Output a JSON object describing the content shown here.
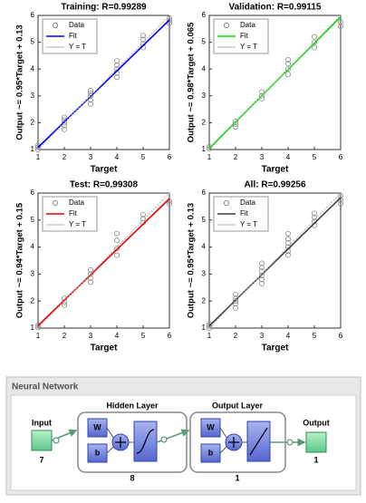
{
  "chart_data": [
    {
      "type": "scatter",
      "title": "Training: R=0.99289",
      "xlabel": "Target",
      "ylabel": "Output ~= 0.95*Target + 0.13",
      "xlim": [
        1,
        6
      ],
      "ylim": [
        1,
        6
      ],
      "xticks": [
        1,
        2,
        3,
        4,
        5,
        6
      ],
      "yticks": [
        1,
        2,
        3,
        4,
        5,
        6
      ],
      "legend": "upper left",
      "series": [
        {
          "name": "Data",
          "color": "#8c8c8c",
          "x": [
            1,
            1,
            1,
            2,
            2,
            2,
            2,
            2,
            3,
            3,
            3,
            3,
            3,
            4,
            4,
            4,
            4,
            4,
            5,
            5,
            5,
            5,
            6,
            6,
            6
          ],
          "values": [
            1.0,
            1.08,
            1.15,
            1.75,
            1.9,
            2.0,
            2.1,
            2.2,
            2.7,
            2.85,
            3.0,
            3.1,
            3.2,
            3.7,
            3.85,
            4.0,
            4.15,
            4.3,
            4.8,
            4.95,
            5.1,
            5.25,
            5.7,
            5.8,
            5.9
          ]
        },
        {
          "name": "Fit",
          "color": "#0000ff",
          "slope": 0.95,
          "intercept": 0.13
        },
        {
          "name": "Y = T",
          "color": "#b0b0b0"
        }
      ]
    },
    {
      "type": "scatter",
      "title": "Validation: R=0.99115",
      "xlabel": "Target",
      "ylabel": "Output ~= 0.98*Target + 0.065",
      "xlim": [
        1,
        6
      ],
      "ylim": [
        1,
        6
      ],
      "xticks": [
        1,
        2,
        3,
        4,
        5,
        6
      ],
      "yticks": [
        1,
        2,
        3,
        4,
        5,
        6
      ],
      "legend": "upper left",
      "series": [
        {
          "name": "Data",
          "color": "#8c8c8c",
          "x": [
            1,
            1,
            2,
            2,
            2,
            3,
            3,
            3,
            4,
            4,
            4,
            4,
            5,
            5,
            5,
            6,
            6
          ],
          "values": [
            1.02,
            1.1,
            1.85,
            1.95,
            2.05,
            2.9,
            3.0,
            3.15,
            3.8,
            4.0,
            4.2,
            4.35,
            4.8,
            5.0,
            5.2,
            5.6,
            5.75
          ]
        },
        {
          "name": "Fit",
          "color": "#00e600",
          "slope": 0.98,
          "intercept": 0.065
        },
        {
          "name": "Y = T",
          "color": "#b0b0b0"
        }
      ]
    },
    {
      "type": "scatter",
      "title": "Test: R=0.99308",
      "xlabel": "Target",
      "ylabel": "Output ~= 0.94*Target + 0.15",
      "xlim": [
        1,
        6
      ],
      "ylim": [
        1,
        6
      ],
      "xticks": [
        1,
        2,
        3,
        4,
        5,
        6
      ],
      "yticks": [
        1,
        2,
        3,
        4,
        5,
        6
      ],
      "legend": "upper left",
      "series": [
        {
          "name": "Data",
          "color": "#8c8c8c",
          "x": [
            1,
            1,
            2,
            2,
            2,
            3,
            3,
            3,
            3,
            4,
            4,
            4,
            4,
            5,
            5,
            5,
            6,
            6
          ],
          "values": [
            1.02,
            1.1,
            1.85,
            1.95,
            2.1,
            2.7,
            2.85,
            3.0,
            3.15,
            3.7,
            3.95,
            4.25,
            4.5,
            4.9,
            5.05,
            5.2,
            5.6,
            5.7
          ]
        },
        {
          "name": "Fit",
          "color": "#e60000",
          "slope": 0.94,
          "intercept": 0.15
        },
        {
          "name": "Y = T",
          "color": "#b0b0b0"
        }
      ]
    },
    {
      "type": "scatter",
      "title": "All: R=0.99256",
      "xlabel": "Target",
      "ylabel": "Output ~= 0.95*Target + 0.13",
      "xlim": [
        1,
        6
      ],
      "ylim": [
        1,
        6
      ],
      "xticks": [
        1,
        2,
        3,
        4,
        5,
        6
      ],
      "yticks": [
        1,
        2,
        3,
        4,
        5,
        6
      ],
      "legend": "upper left",
      "series": [
        {
          "name": "Data",
          "color": "#8c8c8c",
          "x": [
            1,
            1,
            1,
            2,
            2,
            2,
            2,
            2,
            3,
            3,
            3,
            3,
            3,
            3,
            4,
            4,
            4,
            4,
            4,
            4,
            5,
            5,
            5,
            5,
            6,
            6,
            6
          ],
          "values": [
            1.0,
            1.08,
            1.15,
            1.75,
            1.9,
            2.0,
            2.1,
            2.25,
            2.65,
            2.8,
            2.95,
            3.1,
            3.25,
            3.4,
            3.7,
            3.85,
            4.0,
            4.15,
            4.3,
            4.5,
            4.8,
            4.95,
            5.1,
            5.25,
            5.6,
            5.75,
            5.9
          ]
        },
        {
          "name": "Fit",
          "color": "#404040",
          "slope": 0.95,
          "intercept": 0.13
        },
        {
          "name": "Y = T",
          "color": "#b0b0b0"
        }
      ]
    }
  ],
  "network": {
    "title": "Neural Network",
    "input": {
      "label": "Input",
      "size": 7
    },
    "hidden": {
      "label": "Hidden Layer",
      "weight": "W",
      "bias": "b",
      "size": 8
    },
    "output_layer": {
      "label": "Output Layer",
      "weight": "W",
      "bias": "b",
      "size": 1
    },
    "output": {
      "label": "Output",
      "size": 1
    }
  }
}
